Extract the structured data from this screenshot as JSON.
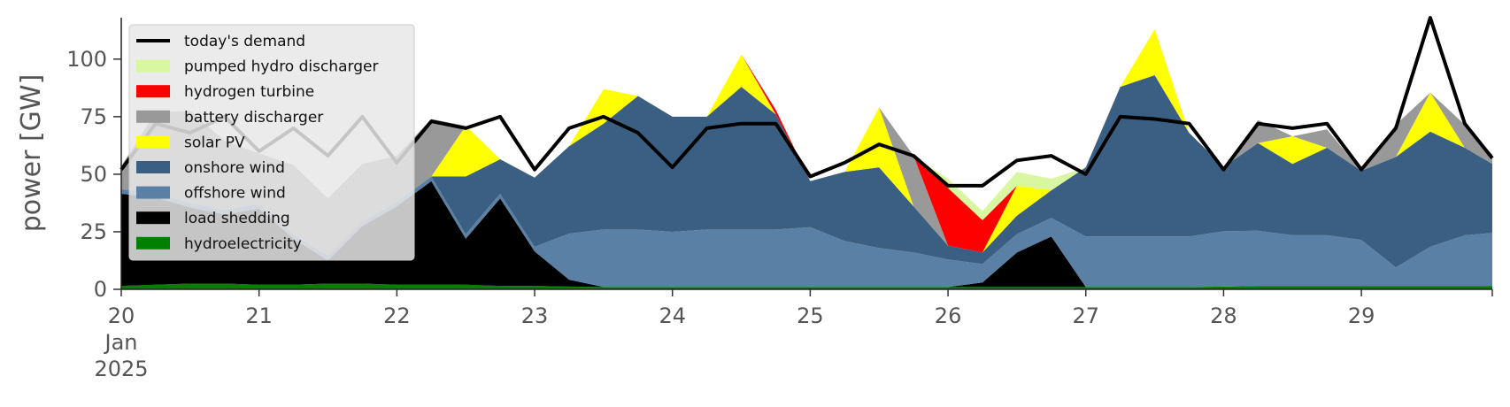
{
  "chart_data": {
    "type": "area",
    "stacked": true,
    "title": "",
    "xlabel": "",
    "ylabel": "power [GW]",
    "x_unit": "day (Jan 2025)",
    "xlim": [
      20,
      29.95
    ],
    "ylim": [
      0,
      118
    ],
    "x_ticks": [
      20,
      21,
      22,
      23,
      24,
      25,
      26,
      27,
      28,
      29
    ],
    "x_tick_labels": [
      "20",
      "21",
      "22",
      "23",
      "24",
      "25",
      "26",
      "27",
      "28",
      "29"
    ],
    "x_tick_label_extra": [
      "Jan",
      "2025"
    ],
    "y_ticks": [
      0,
      25,
      50,
      75,
      100
    ],
    "y_tick_labels": [
      "0",
      "25",
      "50",
      "75",
      "100"
    ],
    "grid": false,
    "legend_position": "top-left",
    "x": [
      20.0,
      20.25,
      20.5,
      20.75,
      21.0,
      21.25,
      21.5,
      21.75,
      22.0,
      22.25,
      22.5,
      22.75,
      23.0,
      23.25,
      23.5,
      23.75,
      24.0,
      24.25,
      24.5,
      24.75,
      25.0,
      25.25,
      25.5,
      25.75,
      26.0,
      26.25,
      26.5,
      26.75,
      27.0,
      27.25,
      27.5,
      27.75,
      28.0,
      28.25,
      28.5,
      28.75,
      29.0,
      29.25,
      29.5,
      29.75,
      29.95
    ],
    "series": [
      {
        "name": "hydroelectricity",
        "color": "#008000",
        "values": [
          1.5,
          2,
          2.5,
          2.5,
          2,
          2,
          2.5,
          2.5,
          2,
          2,
          2,
          1.5,
          1.5,
          1.2,
          1,
          1,
          1,
          1,
          1,
          1,
          1,
          1,
          1,
          1,
          1,
          1,
          1,
          1,
          1,
          1,
          1,
          1,
          1.2,
          1.5,
          1.5,
          1.5,
          1.5,
          1.5,
          1.5,
          1.5,
          1.5
        ]
      },
      {
        "name": "load shedding",
        "color": "#000000",
        "values": [
          40,
          38,
          33,
          30,
          33,
          20,
          10,
          25,
          34,
          45,
          20,
          38,
          15,
          3,
          0,
          0,
          0,
          0,
          0,
          0,
          0,
          0,
          0,
          0,
          0,
          2,
          15,
          22,
          0,
          0,
          0,
          0,
          0,
          0,
          0,
          0,
          0,
          0,
          0,
          0,
          0
        ]
      },
      {
        "name": "offshore wind",
        "color": "#5b80a5",
        "values": [
          2,
          2,
          2,
          2,
          2,
          2,
          2,
          2,
          2,
          2,
          2,
          2,
          2,
          20,
          25,
          25,
          24,
          25,
          25,
          25,
          26,
          20,
          17,
          15,
          12,
          8,
          8,
          8,
          22,
          22,
          22,
          22,
          24,
          24,
          22,
          22,
          20,
          8,
          17,
          22,
          23
        ]
      },
      {
        "name": "onshore wind",
        "color": "#3a5f82",
        "values": [
          0,
          0,
          0,
          0,
          0,
          0,
          0,
          0,
          0,
          0,
          25,
          15,
          30,
          38,
          46,
          58,
          50,
          49,
          62,
          50,
          20,
          30,
          35,
          20,
          6,
          5,
          8,
          12,
          30,
          65,
          70,
          45,
          28,
          38,
          31,
          38,
          30,
          48,
          50,
          38,
          30
        ]
      },
      {
        "name": "solar PV",
        "color": "#ffff00",
        "values": [
          0,
          0,
          0,
          0,
          0,
          0,
          0,
          0,
          0,
          0,
          22,
          0,
          0,
          0,
          15,
          0,
          0,
          0,
          14,
          0,
          0,
          0,
          26,
          0,
          0,
          0,
          13,
          0,
          0,
          0,
          20,
          0,
          0,
          0,
          12,
          0,
          0,
          0,
          17,
          0,
          0
        ]
      },
      {
        "name": "battery discharger",
        "color": "#999999",
        "values": [
          10,
          35,
          40,
          30,
          22,
          30,
          25,
          25,
          20,
          25,
          0,
          0,
          0,
          0,
          0,
          0,
          0,
          0,
          0,
          0,
          0,
          0,
          0,
          22,
          0,
          0,
          0,
          0,
          0,
          0,
          0,
          0,
          0,
          10,
          0,
          8,
          0,
          14,
          0,
          10,
          4
        ]
      },
      {
        "name": "hydrogen turbine",
        "color": "#ff0000",
        "values": [
          0,
          0,
          0,
          0,
          0,
          0,
          0,
          0,
          0,
          0,
          0,
          0,
          0,
          0,
          0,
          0,
          0,
          0,
          0,
          2,
          0,
          0,
          0,
          0,
          25,
          14,
          0,
          0,
          0,
          0,
          0,
          0,
          0,
          0,
          0,
          0,
          0,
          0,
          0,
          0,
          0
        ]
      },
      {
        "name": "pumped hydro discharger",
        "color": "#d9f7a0",
        "values": [
          0,
          0,
          0,
          0,
          0,
          0,
          0,
          0,
          0,
          0,
          0,
          0,
          0,
          0,
          0,
          0,
          0,
          0,
          0,
          0,
          0,
          0,
          0,
          0,
          4,
          4,
          6,
          5,
          0,
          0,
          0,
          0,
          0,
          0,
          0,
          0,
          0,
          0,
          0,
          0,
          0
        ]
      }
    ],
    "demand": {
      "name": "today's demand",
      "color": "#000000",
      "values": [
        52,
        72,
        68,
        75,
        60,
        70,
        58,
        75,
        55,
        73,
        70,
        75,
        52,
        70,
        75,
        68,
        53,
        70,
        72,
        72,
        49,
        55,
        63,
        58,
        45,
        45,
        56,
        58,
        50,
        75,
        74,
        72,
        52,
        72,
        70,
        72,
        52,
        70,
        120,
        72,
        57
      ]
    }
  }
}
